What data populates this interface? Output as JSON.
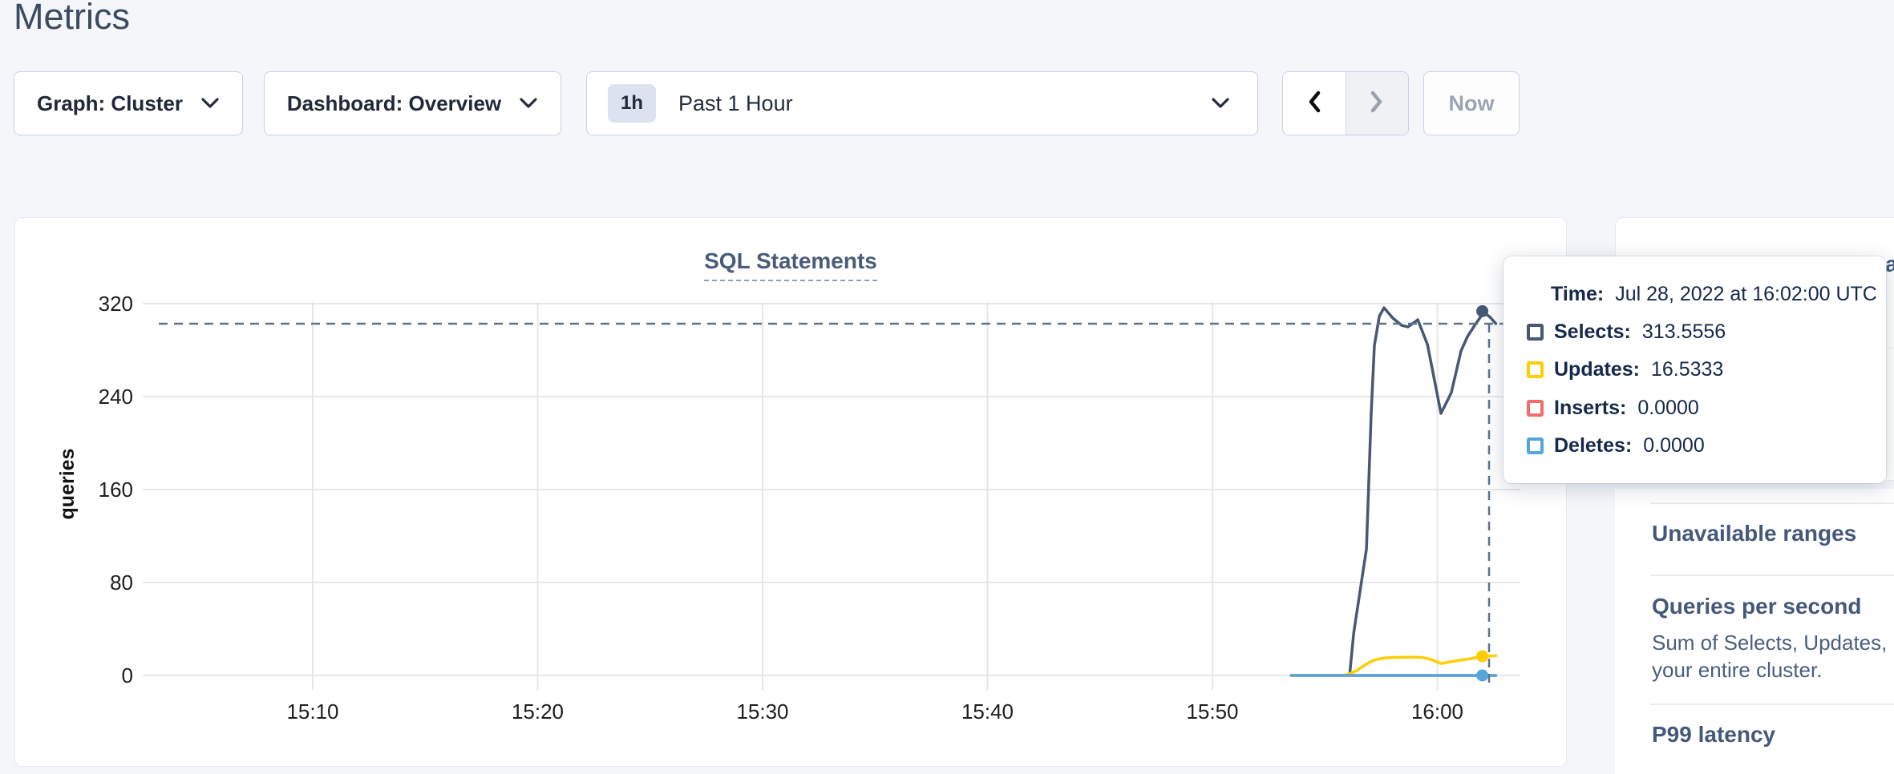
{
  "page": {
    "title": "Metrics"
  },
  "controls": {
    "graph_dropdown": {
      "label": "Graph: Cluster"
    },
    "dashboard_dropdown": {
      "label": "Dashboard: Overview"
    },
    "time_range": {
      "badge": "1h",
      "label": "Past 1 Hour"
    },
    "now_button_label": "Now"
  },
  "chart_card": {
    "title": "SQL Statements"
  },
  "tooltip": {
    "time_label": "Time:",
    "time_value": "Jul 28, 2022 at 16:02:00 UTC",
    "rows": [
      {
        "label": "Selects:",
        "value": "313.5556",
        "color": "#475972"
      },
      {
        "label": "Updates:",
        "value": "16.5333",
        "color": "#ffcd02"
      },
      {
        "label": "Inserts:",
        "value": "0.0000",
        "color": "#f16d6b"
      },
      {
        "label": "Deletes:",
        "value": "0.0000",
        "color": "#56a5dc"
      }
    ]
  },
  "sidebar": {
    "clipped_title_fragment": "a",
    "sections": [
      {
        "heading": "Unavailable ranges"
      },
      {
        "heading": "Queries per second",
        "desc_lines": [
          "Sum of Selects, Updates, Inser",
          "your entire cluster."
        ]
      },
      {
        "heading": "P99 latency"
      }
    ]
  },
  "chart_data": {
    "type": "line",
    "title": "SQL Statements",
    "ylabel": "queries",
    "x_tick_labels": [
      "15:10",
      "15:20",
      "15:30",
      "15:40",
      "15:50",
      "16:00"
    ],
    "x_ticks_min": [
      10,
      20,
      30,
      40,
      50,
      60
    ],
    "y_ticks": [
      0,
      80,
      160,
      240,
      320
    ],
    "ylim": [
      0,
      320
    ],
    "xlim_min": [
      3,
      63
    ],
    "grid": true,
    "legend_position": "tooltip-only",
    "series": [
      {
        "name": "Selects",
        "color": "#475972",
        "points": [
          [
            56.1,
            0
          ],
          [
            56.28,
            36.5
          ],
          [
            56.85,
            109
          ],
          [
            57.06,
            225.5
          ],
          [
            57.2,
            284
          ],
          [
            57.42,
            309
          ],
          [
            57.63,
            316.5
          ],
          [
            58.02,
            307.6
          ],
          [
            58.41,
            301.4
          ],
          [
            58.7,
            300
          ],
          [
            59.13,
            306.2
          ],
          [
            59.56,
            284.8
          ],
          [
            59.91,
            250.3
          ],
          [
            60.16,
            225.5
          ],
          [
            60.45,
            236.6
          ],
          [
            60.62,
            243.4
          ],
          [
            60.87,
            264.1
          ],
          [
            61.05,
            279.3
          ],
          [
            61.34,
            291.7
          ],
          [
            61.66,
            301.4
          ],
          [
            61.91,
            308.3
          ],
          [
            62.0,
            313.5556
          ],
          [
            62.35,
            308.3
          ],
          [
            62.6,
            302.8
          ]
        ]
      },
      {
        "name": "Updates",
        "color": "#ffcd02",
        "points": [
          [
            53.5,
            0
          ],
          [
            55.85,
            0
          ],
          [
            56.1,
            1.5
          ],
          [
            56.4,
            4
          ],
          [
            56.7,
            8
          ],
          [
            57.0,
            11.5
          ],
          [
            57.3,
            13.8
          ],
          [
            57.7,
            15.2
          ],
          [
            58.2,
            15.5
          ],
          [
            58.8,
            15.8
          ],
          [
            59.3,
            15.5
          ],
          [
            59.7,
            14
          ],
          [
            60.0,
            11.5
          ],
          [
            60.16,
            10.3
          ],
          [
            60.5,
            11.5
          ],
          [
            61.0,
            13
          ],
          [
            61.5,
            14.5
          ],
          [
            62.0,
            16.5333
          ],
          [
            62.6,
            16.9
          ]
        ]
      },
      {
        "name": "Inserts",
        "color": "#f16d6b",
        "points": [
          [
            53.5,
            0
          ],
          [
            62.6,
            0
          ]
        ]
      },
      {
        "name": "Deletes",
        "color": "#56a5dc",
        "points": [
          [
            53.5,
            0
          ],
          [
            62.6,
            0
          ]
        ]
      }
    ],
    "hover": {
      "t": 62,
      "time": "Jul 28, 2022 at 16:02:00 UTC",
      "values": {
        "Selects": 313.5556,
        "Updates": 16.5333,
        "Inserts": 0.0,
        "Deletes": 0.0
      }
    }
  }
}
